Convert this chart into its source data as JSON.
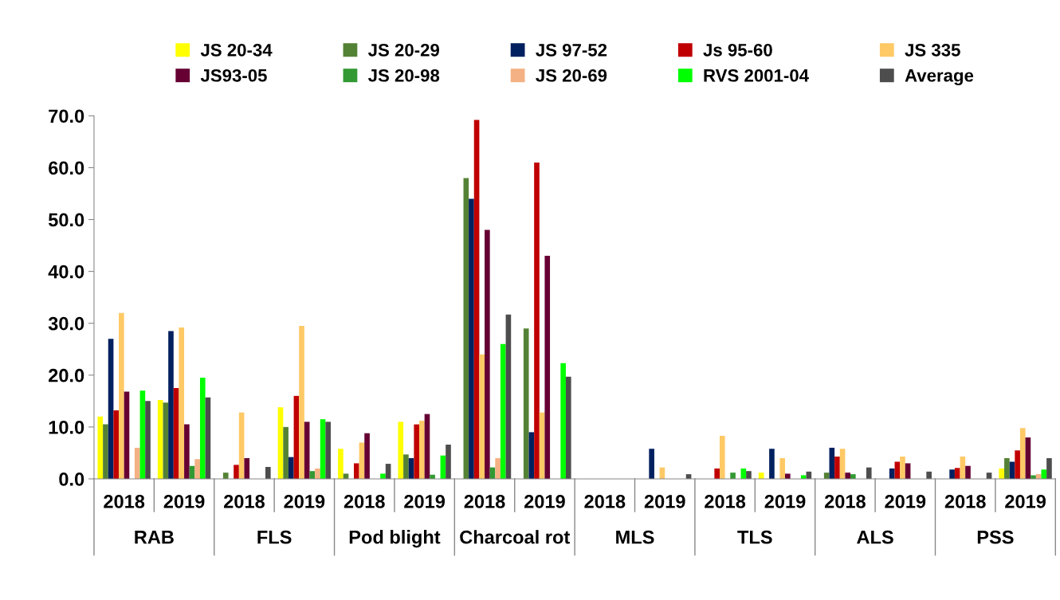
{
  "chart_data": {
    "type": "bar",
    "categories": [
      "2018",
      "2019",
      "2018",
      "2019",
      "2018",
      "2019",
      "2018",
      "2019",
      "2018",
      "2019",
      "2018",
      "2019",
      "2018",
      "2019",
      "2018",
      "2019"
    ],
    "annotations": [
      "RAB",
      "FLS",
      "Pod blight",
      "Charcoal rot",
      "MLS",
      "TLS",
      "ALS",
      "PSS"
    ],
    "series": [
      {
        "name": "JS 20-34",
        "color": "#ffff00",
        "values": [
          12,
          15.2,
          0,
          13.8,
          5.8,
          11,
          0,
          0,
          0,
          0,
          0,
          1.2,
          0,
          0,
          0,
          2
        ]
      },
      {
        "name": "JS 20-29",
        "color": "#548235",
        "values": [
          10.5,
          14.7,
          1.2,
          10,
          1,
          4.7,
          58,
          29,
          0,
          0,
          0,
          0,
          1.2,
          0,
          0,
          4
        ]
      },
      {
        "name": "JS 97-52",
        "color": "#002060",
        "values": [
          27,
          28.5,
          0,
          4.2,
          0,
          4,
          54,
          9,
          0,
          5.8,
          0,
          5.8,
          6,
          2,
          1.8,
          3.3
        ]
      },
      {
        "name": "Js 95-60",
        "color": "#c00000",
        "values": [
          13.2,
          17.5,
          2.7,
          16,
          3,
          10.5,
          69.2,
          61,
          0,
          0,
          2,
          0,
          4.3,
          3.3,
          2.1,
          5.5
        ]
      },
      {
        "name": "JS 335",
        "color": "#ffc966",
        "values": [
          32,
          29.2,
          12.8,
          29.5,
          7,
          11.2,
          24,
          12.8,
          0,
          2.2,
          8.3,
          4,
          5.8,
          4.3,
          4.3,
          9.8
        ]
      },
      {
        "name": "JS93-05",
        "color": "#660033",
        "values": [
          16.8,
          10.5,
          4,
          11,
          8.8,
          12.5,
          48,
          43,
          0,
          0,
          0,
          1,
          1.2,
          3,
          2.5,
          8
        ]
      },
      {
        "name": "JS 20-98",
        "color": "#339933",
        "values": [
          0,
          2.5,
          0,
          1.5,
          0,
          0.8,
          2.2,
          0,
          0,
          0,
          1.2,
          0,
          0.9,
          0,
          0,
          0.7
        ]
      },
      {
        "name": "JS 20-69",
        "color": "#f4b183",
        "values": [
          6,
          3.8,
          0,
          2,
          0,
          0,
          4,
          0,
          0,
          0,
          0,
          0,
          0,
          0,
          0,
          0.9
        ]
      },
      {
        "name": "RVS 2001-04",
        "color": "#00ff00",
        "values": [
          17,
          19.5,
          0,
          11.5,
          1,
          4.5,
          26,
          22.3,
          0,
          0,
          2,
          0.7,
          0,
          0,
          0,
          1.8
        ]
      },
      {
        "name": "Average",
        "color": "#4d4d4d",
        "values": [
          15,
          15.7,
          2.3,
          11,
          2.9,
          6.6,
          31.7,
          19.7,
          0,
          0.9,
          1.5,
          1.4,
          2.2,
          1.4,
          1.2,
          4
        ]
      }
    ],
    "ylim": [
      0,
      70
    ],
    "yticks": [
      {
        "value": 0,
        "label": "0.0"
      },
      {
        "value": 10,
        "label": "10.0"
      },
      {
        "value": 20,
        "label": "20.0"
      },
      {
        "value": 30,
        "label": "30.0"
      },
      {
        "value": 40,
        "label": "40.0"
      },
      {
        "value": 50,
        "label": "50.0"
      },
      {
        "value": 60,
        "label": "60.0"
      },
      {
        "value": 70,
        "label": "70.0"
      }
    ],
    "legend": "top"
  }
}
